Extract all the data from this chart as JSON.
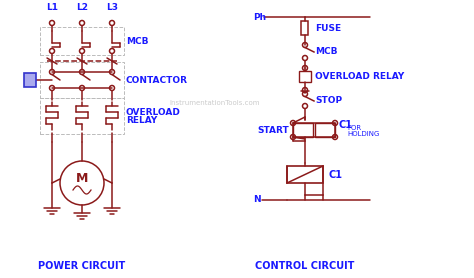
{
  "bg_color": "#ffffff",
  "line_color": "#8B1a1a",
  "text_color_blue": "#1a1aff",
  "text_color_gray": "#aaaaaa",
  "label_fontsize": 6.5,
  "small_fontsize": 5.0,
  "power_circuit_label": "POWER CIRCUIT",
  "control_circuit_label": "CONTROL CIRCUIT",
  "watermark": "InstrumentationTools.com"
}
